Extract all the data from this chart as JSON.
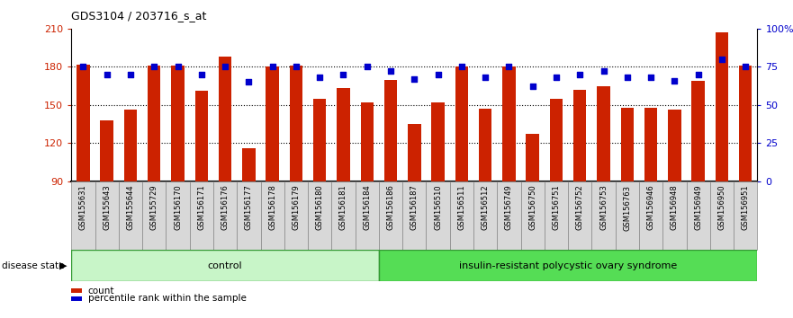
{
  "title": "GDS3104 / 203716_s_at",
  "samples": [
    "GSM155631",
    "GSM155643",
    "GSM155644",
    "GSM155729",
    "GSM156170",
    "GSM156171",
    "GSM156176",
    "GSM156177",
    "GSM156178",
    "GSM156179",
    "GSM156180",
    "GSM156181",
    "GSM156184",
    "GSM156186",
    "GSM156187",
    "GSM156510",
    "GSM156511",
    "GSM156512",
    "GSM156749",
    "GSM156750",
    "GSM156751",
    "GSM156752",
    "GSM156753",
    "GSM156763",
    "GSM156946",
    "GSM156948",
    "GSM156949",
    "GSM156950",
    "GSM156951"
  ],
  "bar_values": [
    182,
    138,
    146,
    181,
    181,
    161,
    188,
    116,
    180,
    181,
    155,
    163,
    152,
    170,
    135,
    152,
    180,
    147,
    180,
    127,
    155,
    162,
    165,
    148,
    148,
    146,
    169,
    207,
    181
  ],
  "dot_values": [
    75,
    70,
    70,
    75,
    75,
    70,
    75,
    65,
    75,
    75,
    68,
    70,
    75,
    72,
    67,
    70,
    75,
    68,
    75,
    62,
    68,
    70,
    72,
    68,
    68,
    66,
    70,
    80,
    75
  ],
  "control_count": 13,
  "group_labels": [
    "control",
    "insulin-resistant polycystic ovary syndrome"
  ],
  "bar_color": "#cc2200",
  "dot_color": "#0000cc",
  "ylim_left": [
    90,
    210
  ],
  "ylim_right": [
    0,
    100
  ],
  "yticks_left": [
    90,
    120,
    150,
    180,
    210
  ],
  "yticks_right": [
    0,
    25,
    50,
    75,
    100
  ],
  "hgrid_lines": [
    120,
    150,
    180
  ],
  "legend_items": [
    "count",
    "percentile rank within the sample"
  ],
  "axis_label_color_left": "#cc2200",
  "axis_label_color_right": "#0000cc",
  "ctrl_color": "#c8f5c8",
  "pcos_color": "#55dd55",
  "band_edge": "#339933"
}
